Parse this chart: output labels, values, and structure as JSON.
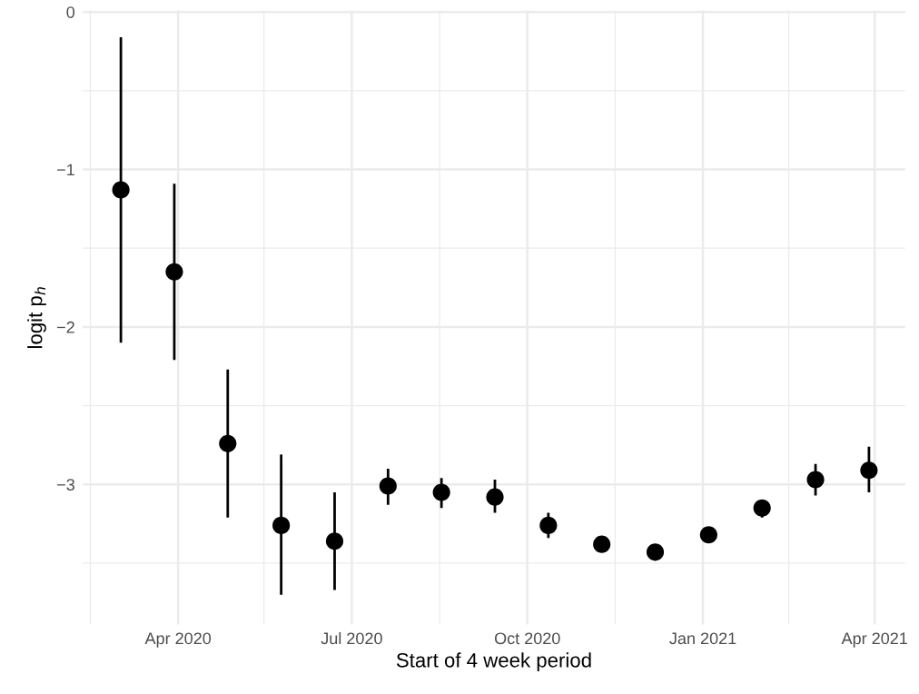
{
  "chart_data": {
    "type": "scatter",
    "xlabel": "Start of 4 week period",
    "ylabel": "logit p$_{h}$",
    "x": [
      "2020-03-02",
      "2020-03-30",
      "2020-04-27",
      "2020-05-25",
      "2020-06-22",
      "2020-07-20",
      "2020-08-17",
      "2020-09-14",
      "2020-10-12",
      "2020-11-09",
      "2020-12-07",
      "2021-01-04",
      "2021-02-01",
      "2021-03-01",
      "2021-03-29"
    ],
    "series": [
      {
        "color": "#000000",
        "values": [
          -1.13,
          -1.65,
          -2.74,
          -3.26,
          -3.36,
          -3.01,
          -3.05,
          -3.08,
          -3.26,
          -3.38,
          -3.43,
          -3.32,
          -3.15,
          -2.97,
          -2.91
        ],
        "errors": [
          [
            -2.1,
            -0.16
          ],
          [
            -2.21,
            -1.09
          ],
          [
            -3.21,
            -2.27
          ],
          [
            -3.7,
            -2.81
          ],
          [
            -3.67,
            -3.05
          ],
          [
            -3.13,
            -2.9
          ],
          [
            -3.15,
            -2.96
          ],
          [
            -3.18,
            -2.97
          ],
          [
            -3.34,
            -3.18
          ],
          null,
          null,
          null,
          [
            -3.21,
            -3.1
          ],
          [
            -3.07,
            -2.87
          ],
          [
            -3.05,
            -2.76
          ]
        ]
      }
    ],
    "marker": "circle",
    "xlim": [
      "2020-02-11",
      "2021-04-17"
    ],
    "xticks": [
      {
        "value": "2020-02-15",
        "label": null
      },
      {
        "value": "2020-04-01",
        "label": "Apr 2020"
      },
      {
        "value": "2020-05-16",
        "label": null
      },
      {
        "value": "2020-07-01",
        "label": "Jul 2020"
      },
      {
        "value": "2020-08-16",
        "label": null
      },
      {
        "value": "2020-10-01",
        "label": "Oct 2020"
      },
      {
        "value": "2020-11-16",
        "label": null
      },
      {
        "value": "2021-01-01",
        "label": "Jan 2021"
      },
      {
        "value": "2021-02-15",
        "label": null
      },
      {
        "value": "2021-04-01",
        "label": "Apr 2021"
      }
    ],
    "ylim": [
      -3.89,
      0.01
    ],
    "yticks": [
      {
        "value": -3.5,
        "label": null
      },
      -3,
      {
        "value": -2.5,
        "label": null
      },
      -2,
      {
        "value": -1.5,
        "label": null
      },
      -1,
      {
        "value": -0.5,
        "label": null
      },
      0
    ],
    "grid": true
  }
}
